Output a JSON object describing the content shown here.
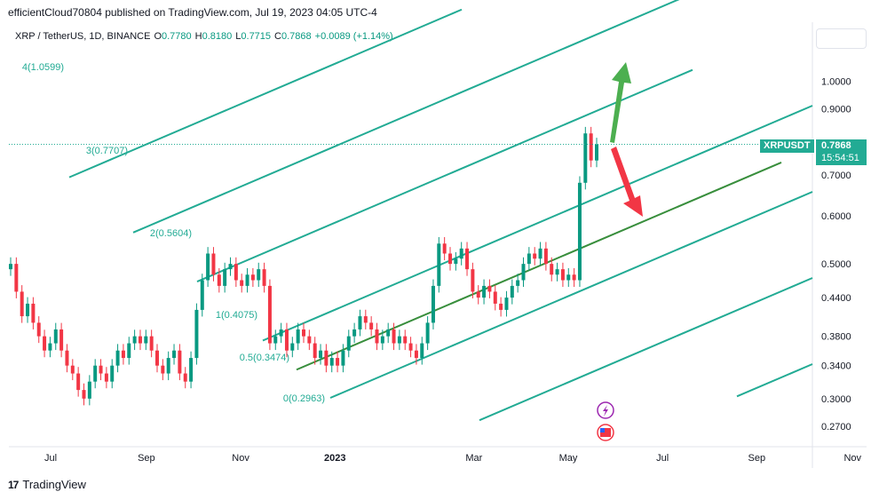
{
  "caption": "efficientCloud70804 published on TradingView.com, Jul 19, 2023 04:05 UTC-4",
  "legend": {
    "symbol": "XRP / TetherUS, 1D, BINANCE",
    "open_label": "O",
    "open": "0.7780",
    "high_label": "H",
    "high": "0.8180",
    "low_label": "L",
    "low": "0.7715",
    "close_label": "C",
    "close": "0.7868",
    "change": "+0.0089 (+1.14%)"
  },
  "price_badge": {
    "ticker": "XRPUSDT",
    "price": "0.7868",
    "countdown": "15:54:51"
  },
  "footer": {
    "logo_mark": "17",
    "brand": "TradingView"
  },
  "colors": {
    "bull": "#089981",
    "bear": "#f23645",
    "channel": "#22ab94",
    "median": "#388e3c",
    "arrow_up": "#4caf50",
    "arrow_down": "#f23645",
    "last_price_line": "#22ab94"
  },
  "icons": [
    "lightning-icon",
    "us-flag-icon"
  ],
  "chart_data": {
    "type": "candlestick",
    "symbol": "XRP / TetherUS",
    "interval": "1D",
    "y_scale": "log",
    "ylim": [
      0.25,
      1.25
    ],
    "y_ticks": [
      "1.0000",
      "0.9000",
      "0.7000",
      "0.6000",
      "0.5000",
      "0.4400",
      "0.3800",
      "0.3400",
      "0.3000",
      "0.2700"
    ],
    "x_ticks": [
      "Jul",
      "Sep",
      "Nov",
      "2023",
      "Mar",
      "May",
      "Jul",
      "Sep",
      "Nov"
    ],
    "x_range_days": [
      0,
      520
    ],
    "x_tick_days": [
      27,
      89,
      150,
      211,
      301,
      362,
      423,
      484,
      546
    ],
    "last_price": 0.7868,
    "fib_channel_levels": [
      {
        "label": "4(1.0599)",
        "value": 1.0599
      },
      {
        "label": "3(0.7707)",
        "value": 0.7707
      },
      {
        "label": "2(0.5604)",
        "value": 0.5604
      },
      {
        "label": "1(0.4075)",
        "value": 0.4075
      },
      {
        "label": "0.5(0.3474)",
        "value": 0.3474
      },
      {
        "label": "0(0.2963)",
        "value": 0.2963
      }
    ],
    "closes": [
      0.5,
      0.45,
      0.41,
      0.43,
      0.4,
      0.38,
      0.36,
      0.37,
      0.39,
      0.36,
      0.34,
      0.33,
      0.31,
      0.3,
      0.32,
      0.34,
      0.33,
      0.32,
      0.34,
      0.36,
      0.35,
      0.37,
      0.38,
      0.37,
      0.38,
      0.36,
      0.34,
      0.33,
      0.35,
      0.36,
      0.33,
      0.32,
      0.35,
      0.42,
      0.47,
      0.52,
      0.48,
      0.46,
      0.49,
      0.5,
      0.47,
      0.46,
      0.48,
      0.47,
      0.49,
      0.46,
      0.37,
      0.38,
      0.39,
      0.36,
      0.37,
      0.39,
      0.38,
      0.37,
      0.35,
      0.36,
      0.34,
      0.35,
      0.34,
      0.36,
      0.38,
      0.39,
      0.41,
      0.4,
      0.39,
      0.37,
      0.38,
      0.39,
      0.37,
      0.38,
      0.37,
      0.36,
      0.35,
      0.37,
      0.4,
      0.46,
      0.54,
      0.52,
      0.5,
      0.51,
      0.53,
      0.49,
      0.45,
      0.44,
      0.46,
      0.45,
      0.43,
      0.42,
      0.44,
      0.46,
      0.47,
      0.5,
      0.52,
      0.51,
      0.53,
      0.5,
      0.48,
      0.49,
      0.47,
      0.48,
      0.47,
      0.68,
      0.82,
      0.74,
      0.7868
    ]
  }
}
